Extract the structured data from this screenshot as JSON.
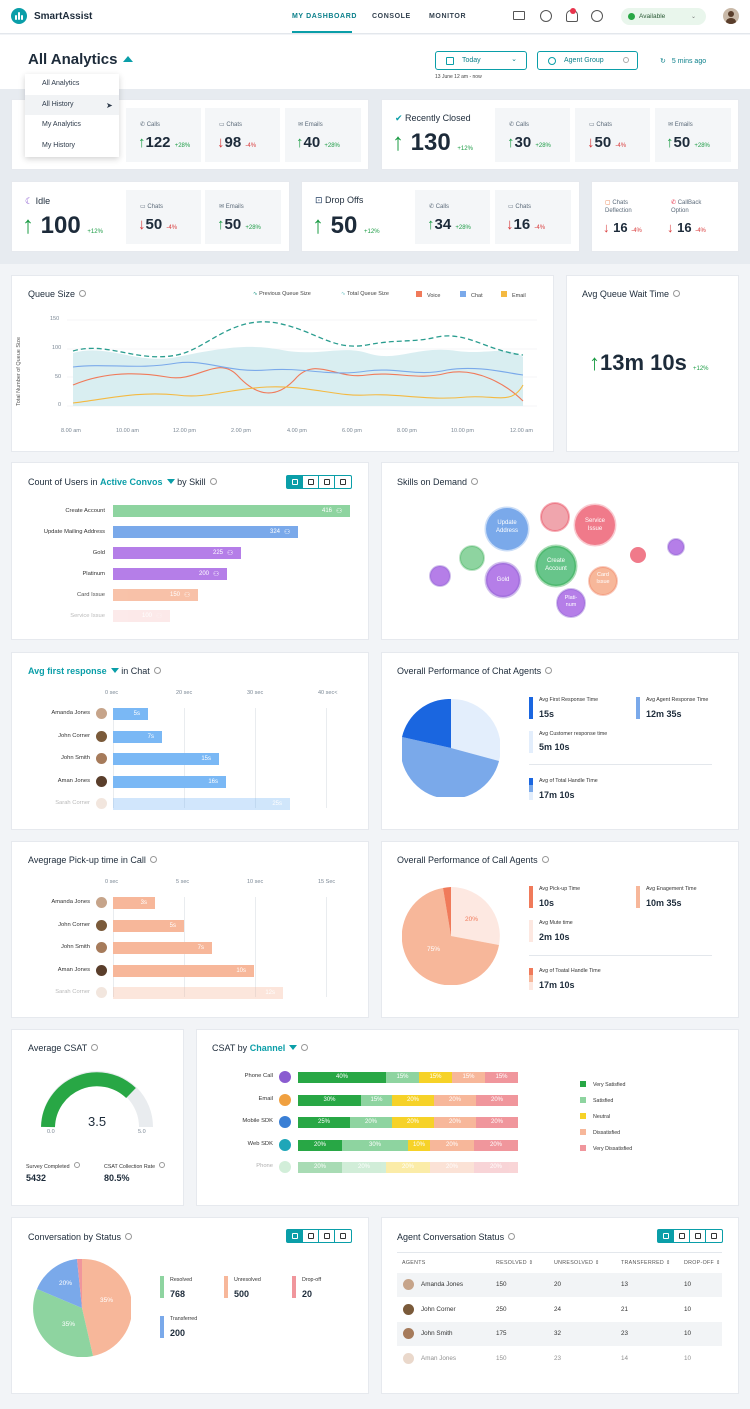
{
  "app": {
    "name": "SmartAssist"
  },
  "nav": {
    "items": [
      "MY DASHBOARD",
      "CONSOLE",
      "MONITOR"
    ]
  },
  "status": {
    "label": "Available"
  },
  "header": {
    "title": "All Analytics",
    "date_filter": "Today",
    "date_sub": "13 June  12 am - now",
    "agent_filter": "Agent Group",
    "refreshed": "5 mins ago"
  },
  "menu": {
    "items": [
      "All Analytics",
      "All History",
      "My Analytics",
      "My History"
    ]
  },
  "labels": {
    "calls": "Calls",
    "chats": "Chats",
    "emails": "Emails",
    "recently_closed": "Recently Closed",
    "idle": "Idle",
    "drop_offs": "Drop Offs",
    "chats_deflection": "Chats Deflection",
    "callback_option": "CallBack Option"
  },
  "kpis": {
    "first": {
      "calls": "122",
      "calls_pct": "+28%",
      "chats": "98",
      "chats_pct": "-4%",
      "emails": "40",
      "emails_pct": "+28%"
    },
    "recently_closed": {
      "total": "130",
      "total_pct": "+12%",
      "calls": "30",
      "calls_pct": "+28%",
      "chats": "50",
      "chats_pct": "-4%",
      "emails": "50",
      "emails_pct": "+28%"
    },
    "idle": {
      "total": "100",
      "total_pct": "+12%",
      "chats": "50",
      "chats_pct": "-4%",
      "emails": "50",
      "emails_pct": "+28%"
    },
    "drop_offs": {
      "total": "50",
      "total_pct": "+12%",
      "calls": "34",
      "calls_pct": "+28%",
      "chats": "16",
      "chats_pct": "-4%"
    },
    "deflection": {
      "chats": "16",
      "chats_pct": "-4%",
      "callback": "16",
      "callback_pct": "-4%"
    }
  },
  "queue": {
    "title": "Queue Size",
    "ylabel": "Total Number of Queue Size",
    "legend": [
      "Previous Queue Size",
      "Total Queue Size",
      "Voice",
      "Chat",
      "Email"
    ],
    "yticks": [
      "150",
      "100",
      "50",
      "0"
    ],
    "xticks": [
      "8.00 am",
      "10.00 am",
      "12.00 pm",
      "2.00 pm",
      "4.00 pm",
      "6.00 pm",
      "8.00 pm",
      "10.00 pm",
      "12.00 am"
    ]
  },
  "wait": {
    "title": "Avg Queue Wait Time",
    "value": "13m 10s",
    "pct": "+12%"
  },
  "users_by_skill": {
    "title_pre": "Count of Users in",
    "title_link": "Active Convos",
    "title_post": "by Skill",
    "rows": [
      {
        "label": "Create Account",
        "value": "416"
      },
      {
        "label": "Update Mailing Address",
        "value": "324"
      },
      {
        "label": "Gold",
        "value": "225"
      },
      {
        "label": "Platinum",
        "value": "200"
      },
      {
        "label": "Card Issue",
        "value": "150"
      },
      {
        "label": "Service Issue",
        "value": "100"
      }
    ]
  },
  "skills_demand": {
    "title": "Skills on Demand",
    "bubbles": [
      "Update Address",
      "Service Issue",
      "Create Account",
      "Card Issue",
      "Gold",
      "Plati-num"
    ]
  },
  "first_response": {
    "title_link": "Avg first response",
    "title_post": "in Chat",
    "ticks": [
      "0 sec",
      "20 sec",
      "30 sec",
      "40 sec<"
    ],
    "rows": [
      {
        "name": "Amanda Jones",
        "value": "5s"
      },
      {
        "name": "John Corner",
        "value": "7s"
      },
      {
        "name": "John Smith",
        "value": "15s"
      },
      {
        "name": "Aman Jones",
        "value": "16s"
      },
      {
        "name": "Sarah Corner",
        "value": "25s"
      }
    ]
  },
  "chat_perf": {
    "title": "Overall Performance of Chat Agents",
    "items": [
      {
        "label": "Avg First Response Time",
        "value": "15s"
      },
      {
        "label": "Avg Agent Response Time",
        "value": "12m 35s"
      },
      {
        "label": "Avg Customer response time",
        "value": "5m 10s"
      },
      {
        "label": "Avg of Total Handle Time",
        "value": "17m 10s"
      }
    ]
  },
  "pickup": {
    "title": "Avegrage Pick-up time in Call",
    "ticks": [
      "0 sec",
      "5 sec",
      "10 sec",
      "15 Sec"
    ],
    "rows": [
      {
        "name": "Amanda Jones",
        "value": "3s"
      },
      {
        "name": "John Corner",
        "value": "5s"
      },
      {
        "name": "John Smith",
        "value": "7s"
      },
      {
        "name": "Aman Jones",
        "value": "10s"
      },
      {
        "name": "Sarah Corner",
        "value": "12s"
      }
    ]
  },
  "call_perf": {
    "title": "Overall Performance of Call Agents",
    "slices": [
      "20%",
      "75%"
    ],
    "items": [
      {
        "label": "Avg Pick-up Time",
        "value": "10s"
      },
      {
        "label": "Avg Enagement Time",
        "value": "10m 35s"
      },
      {
        "label": "Avg Mute time",
        "value": "2m 10s"
      },
      {
        "label": "Avg of Toatal Handle Time",
        "value": "17m 10s"
      }
    ]
  },
  "csat": {
    "title": "Average CSAT",
    "value": "3.5",
    "min": "0.0",
    "max": "5.0",
    "survey_label": "Survey Completed",
    "survey_value": "5432",
    "rate_label": "CSAT Collection Rate",
    "rate_value": "80.5%"
  },
  "csat_channel": {
    "title_pre": "CSAT by",
    "title_link": "Channel",
    "legend": [
      "Very Satisfied",
      "Satisfied",
      "Neutral",
      "Dissatisfied",
      "Very Dissatisfied"
    ],
    "rows": [
      {
        "label": "Phone Call",
        "segs": [
          "40%",
          "15%",
          "15%",
          "15%",
          "15%"
        ]
      },
      {
        "label": "Email",
        "segs": [
          "30%",
          "15%",
          "20%",
          "20%",
          "20%"
        ]
      },
      {
        "label": "Mobile SDK",
        "segs": [
          "25%",
          "20%",
          "20%",
          "20%",
          "20%"
        ]
      },
      {
        "label": "Web SDK",
        "segs": [
          "20%",
          "30%",
          "10%",
          "20%",
          "20%"
        ]
      },
      {
        "label": "Phone",
        "segs": [
          "20%",
          "20%",
          "20%",
          "20%",
          "20%"
        ]
      }
    ]
  },
  "conv_status": {
    "title": "Conversation by Status",
    "slices": [
      "20%",
      "35%",
      "35%"
    ],
    "items": [
      {
        "label": "Resolved",
        "value": "768"
      },
      {
        "label": "Unresolved",
        "value": "500"
      },
      {
        "label": "Drop-off",
        "value": "20"
      },
      {
        "label": "Transferred",
        "value": "200"
      }
    ]
  },
  "agent_conv": {
    "title": "Agent Conversation Status",
    "headers": [
      "AGENTS",
      "RESOLVED",
      "UNRESOLVED",
      "TRANSFERRED",
      "DROP-OFF"
    ],
    "rows": [
      [
        "Amanda Jones",
        "150",
        "20",
        "13",
        "10"
      ],
      [
        "John Corner",
        "250",
        "24",
        "21",
        "10"
      ],
      [
        "John Smith",
        "175",
        "32",
        "23",
        "10"
      ],
      [
        "Aman Jones",
        "150",
        "23",
        "14",
        "10"
      ]
    ]
  }
}
